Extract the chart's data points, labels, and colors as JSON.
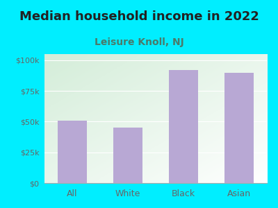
{
  "title": "Median household income in 2022",
  "subtitle": "Leisure Knoll, NJ",
  "categories": [
    "All",
    "White",
    "Black",
    "Asian"
  ],
  "values": [
    51000,
    45000,
    92000,
    90000
  ],
  "bar_color": "#b8a8d4",
  "background_outer": "#00eeff",
  "background_inner_gradient_tl": "#d4edd8",
  "background_inner_gradient_br": "#f5f5f5",
  "title_fontsize": 13,
  "subtitle_fontsize": 10,
  "tick_label_color": "#666666",
  "subtitle_color": "#4a7a6a",
  "title_color": "#222222",
  "ylim": [
    0,
    105000
  ],
  "yticks": [
    0,
    25000,
    50000,
    75000,
    100000
  ],
  "ytick_labels": [
    "$0",
    "$25k",
    "$50k",
    "$75k",
    "$100k"
  ]
}
